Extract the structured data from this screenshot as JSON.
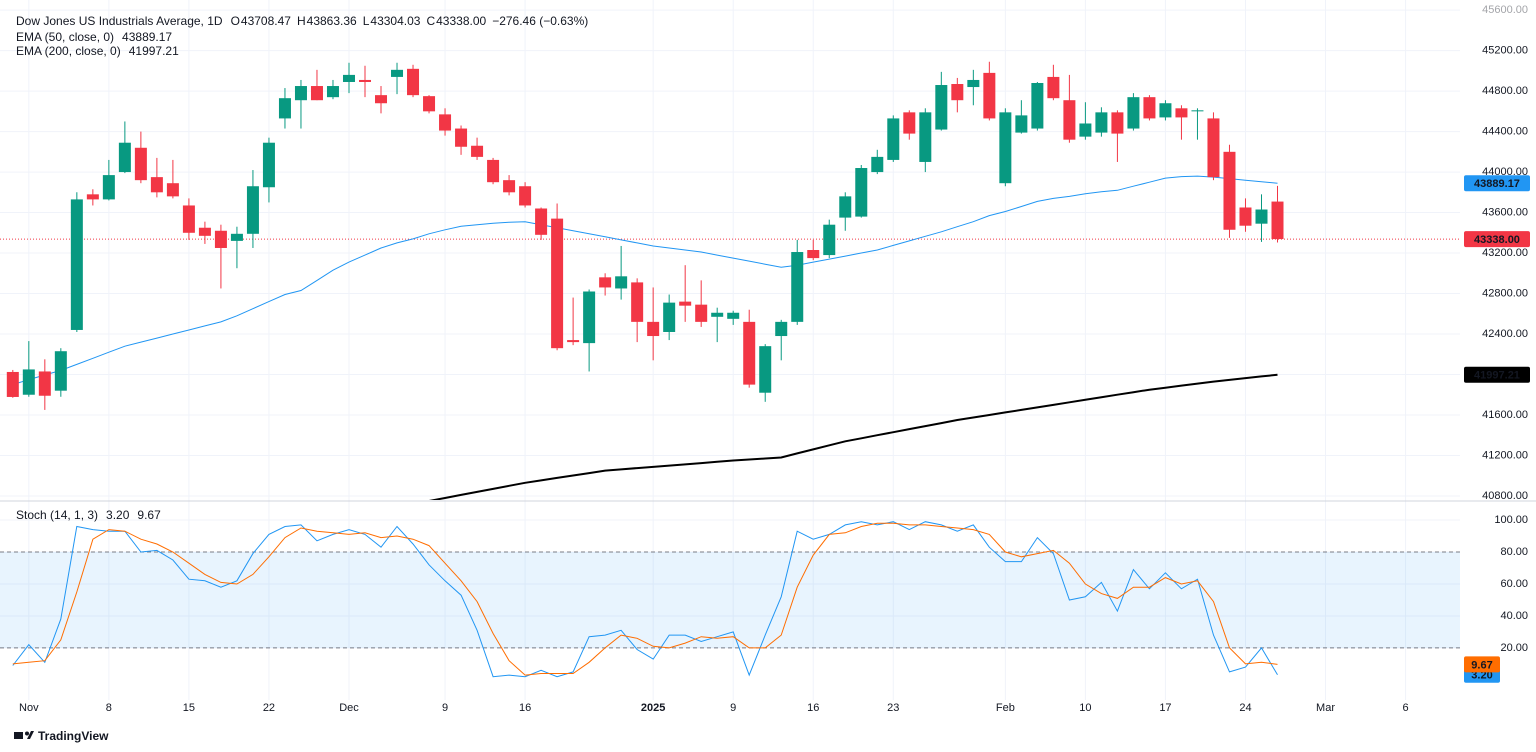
{
  "chart_data": [
    {
      "type": "candlestick",
      "title": "Dow Jones US Industrials Average, 1D",
      "ohlc": [
        {
          "key": "O",
          "text": "43708.47"
        },
        {
          "key": "H",
          "text": "43863.36"
        },
        {
          "key": "L",
          "text": "43304.03"
        },
        {
          "key": "C",
          "text": "43338.00"
        }
      ],
      "change": "−276.46 (−0.63%)",
      "up_color": "#089981",
      "down_color": "#f23645",
      "last_label": "43338.00",
      "xlim": [
        -0.8,
        90.4
      ],
      "ylim": [
        40760,
        45700
      ],
      "yticks": [
        {
          "value": 40800,
          "label": "40800.00"
        },
        {
          "value": 41200,
          "label": "41200.00"
        },
        {
          "value": 41600,
          "label": "41600.00"
        },
        {
          "value": 42000,
          "label": "42000.00"
        },
        {
          "value": 42400,
          "label": "42400.00"
        },
        {
          "value": 42800,
          "label": "42800.00"
        },
        {
          "value": 43200,
          "label": "43200.00"
        },
        {
          "value": 43600,
          "label": "43600.00"
        },
        {
          "value": 44000,
          "label": "44000.00"
        },
        {
          "value": 44400,
          "label": "44400.00"
        },
        {
          "value": 44800,
          "label": "44800.00"
        },
        {
          "value": 45200,
          "label": "45200.00"
        },
        {
          "value": 45600,
          "label": "45600.00"
        }
      ],
      "grid": true,
      "open": [
        42025,
        41800,
        42030,
        41840,
        42440,
        43780,
        43730,
        44000,
        44240,
        43950,
        43890,
        43670,
        43450,
        43420,
        43320,
        43390,
        43850,
        44530,
        44710,
        44850,
        44740,
        44890,
        44910,
        44760,
        44940,
        45020,
        44750,
        44570,
        44430,
        44260,
        44120,
        43920,
        43860,
        43640,
        43540,
        42340,
        42310,
        42960,
        42850,
        42910,
        42520,
        42420,
        42720,
        42690,
        42570,
        42550,
        42520,
        41820,
        42380,
        42520,
        43230,
        43180,
        43550,
        43560,
        44000,
        44120,
        44590,
        44100,
        44420,
        44870,
        44840,
        44980,
        43890,
        44390,
        44430,
        44940,
        44710,
        44350,
        44390,
        44590,
        44430,
        44740,
        44540,
        44630,
        44600,
        44530,
        44200,
        43650,
        43490,
        43708.47
      ],
      "high": [
        42045,
        42330,
        42150,
        42260,
        43800,
        43830,
        44120,
        44500,
        44400,
        44140,
        44120,
        43740,
        43510,
        43480,
        43460,
        44020,
        44340,
        44830,
        44910,
        45010,
        44910,
        45080,
        45050,
        44850,
        45080,
        45060,
        44760,
        44630,
        44460,
        44340,
        44140,
        43970,
        43900,
        43650,
        43690,
        42760,
        42840,
        43000,
        43270,
        42950,
        42860,
        42790,
        43080,
        42930,
        42660,
        42630,
        42640,
        42300,
        42540,
        43330,
        43330,
        43530,
        43800,
        44070,
        44220,
        44560,
        44610,
        44630,
        44990,
        44930,
        45010,
        45090,
        44630,
        44710,
        44890,
        45060,
        44960,
        44690,
        44640,
        44610,
        44780,
        44760,
        44710,
        44660,
        44630,
        44590,
        44270,
        43740,
        43780,
        43863.36
      ],
      "low": [
        41770,
        41780,
        41650,
        41780,
        42420,
        43670,
        43720,
        43990,
        43890,
        43750,
        43740,
        43330,
        43290,
        42850,
        43050,
        43250,
        43700,
        44430,
        44430,
        44710,
        44720,
        44780,
        44740,
        44580,
        44770,
        44740,
        44580,
        44360,
        44170,
        44120,
        43880,
        43770,
        43650,
        43330,
        42240,
        42290,
        42030,
        42780,
        42740,
        42320,
        42140,
        42340,
        42520,
        42470,
        42320,
        42490,
        41870,
        41730,
        42140,
        42490,
        43130,
        43150,
        43420,
        43550,
        43980,
        44100,
        44320,
        44000,
        44410,
        44590,
        44660,
        44510,
        43860,
        44380,
        44410,
        44710,
        44290,
        44320,
        44350,
        44100,
        44410,
        44510,
        44510,
        44320,
        44320,
        43920,
        43350,
        43410,
        43310,
        43304.03
      ],
      "close": [
        41778,
        42050,
        41790,
        42230,
        43730,
        43730,
        43970,
        44290,
        43920,
        43800,
        43760,
        43400,
        43370,
        43250,
        43390,
        43860,
        44290,
        44730,
        44850,
        44710,
        44850,
        44960,
        44890,
        44680,
        45010,
        44760,
        44600,
        44410,
        44250,
        44150,
        43900,
        43800,
        43670,
        43380,
        42260,
        42320,
        42820,
        42860,
        42970,
        42520,
        42380,
        42710,
        42680,
        42520,
        42610,
        42610,
        41900,
        42280,
        42520,
        43210,
        43150,
        43480,
        43760,
        44040,
        44150,
        44530,
        44380,
        44590,
        44860,
        44710,
        44910,
        44530,
        44590,
        44560,
        44880,
        44730,
        44320,
        44480,
        44590,
        44380,
        44740,
        44530,
        44680,
        44540,
        44610,
        43950,
        43430,
        43470,
        43630,
        43338
      ],
      "series": [
        {
          "name": "EMA (50, close, 0)",
          "color": "#2196f3",
          "width": 1,
          "last_label": "43889.17",
          "values": [
            41900,
            41950,
            41995,
            42040,
            42100,
            42160,
            42220,
            42280,
            42320,
            42360,
            42400,
            42440,
            42480,
            42520,
            42580,
            42650,
            42720,
            42790,
            42830,
            42930,
            43030,
            43110,
            43180,
            43250,
            43300,
            43340,
            43390,
            43430,
            43465,
            43480,
            43495,
            43505,
            43510,
            43480,
            43450,
            43420,
            43390,
            43360,
            43330,
            43300,
            43270,
            43250,
            43230,
            43210,
            43180,
            43150,
            43120,
            43090,
            43060,
            43080,
            43110,
            43140,
            43170,
            43200,
            43230,
            43275,
            43320,
            43365,
            43410,
            43460,
            43510,
            43570,
            43610,
            43660,
            43710,
            43740,
            43760,
            43785,
            43805,
            43820,
            43860,
            43900,
            43940,
            43955,
            43960,
            43950,
            43935,
            43920,
            43905,
            43889.17
          ]
        },
        {
          "name": "EMA (200, close, 0)",
          "color": "#000000",
          "width": 2,
          "last_label": "41997.21",
          "values": [
            null,
            null,
            null,
            null,
            null,
            null,
            null,
            null,
            null,
            null,
            null,
            null,
            null,
            null,
            null,
            null,
            null,
            null,
            null,
            null,
            null,
            null,
            null,
            null,
            null,
            null,
            40750,
            40780,
            40810,
            40840,
            40870,
            40900,
            40930,
            40954,
            40978,
            41002,
            41026,
            41050,
            41062,
            41075,
            41087,
            41100,
            41112,
            41125,
            41137,
            41150,
            41160,
            41170,
            41180,
            41220,
            41260,
            41300,
            41340,
            41370,
            41400,
            41430,
            41460,
            41490,
            41520,
            41550,
            41575,
            41600,
            41625,
            41650,
            41675,
            41700,
            41725,
            41750,
            41775,
            41800,
            41825,
            41850,
            41870,
            41890,
            41910,
            41930,
            41947,
            41964,
            41981,
            41997.21
          ]
        }
      ]
    },
    {
      "type": "line",
      "title": "Stoch (14, 1, 3)",
      "xlim": [
        -0.8,
        90.4
      ],
      "ylim": [
        -12.6,
        111.3
      ],
      "yticks": [
        {
          "value": 20,
          "label": "20.00"
        },
        {
          "value": 40,
          "label": "40.00"
        },
        {
          "value": 60,
          "label": "60.00"
        },
        {
          "value": 80,
          "label": "80.00"
        },
        {
          "value": 100,
          "label": "100.00"
        }
      ],
      "bands": [
        20,
        80
      ],
      "band_color": "#2196f3",
      "xticks": [
        {
          "value": 1,
          "label": "Nov"
        },
        {
          "value": 6,
          "label": "8"
        },
        {
          "value": 11,
          "label": "15"
        },
        {
          "value": 16,
          "label": "22"
        },
        {
          "value": 21,
          "label": "Dec"
        },
        {
          "value": 27,
          "label": "9"
        },
        {
          "value": 32,
          "label": "16"
        },
        {
          "value": 40,
          "label": "2025"
        },
        {
          "value": 45,
          "label": "9"
        },
        {
          "value": 50,
          "label": "16"
        },
        {
          "value": 55,
          "label": "23"
        },
        {
          "value": 62,
          "label": "Feb"
        },
        {
          "value": 67,
          "label": "10"
        },
        {
          "value": 72,
          "label": "17"
        },
        {
          "value": 77,
          "label": "24"
        },
        {
          "value": 82,
          "label": "Mar"
        },
        {
          "value": 87,
          "label": "6"
        }
      ],
      "series": [
        {
          "color": "#2196f3",
          "last_label": "3.20",
          "values": [
            9,
            22,
            11,
            38,
            96,
            94,
            93,
            93,
            80,
            81,
            75,
            63,
            62,
            58,
            62,
            79,
            91,
            96,
            97,
            87,
            91,
            94,
            91,
            83,
            96,
            85,
            72,
            62,
            53,
            31,
            2,
            3,
            2,
            6,
            2,
            5,
            27,
            28,
            31,
            19,
            13,
            28,
            28,
            24,
            27,
            30,
            3,
            28,
            52,
            93,
            88,
            91,
            97,
            99,
            97,
            99,
            94,
            99,
            97,
            93,
            97,
            83,
            74,
            74,
            89,
            79,
            50,
            52,
            61,
            43,
            69,
            57,
            67,
            57,
            63,
            28,
            5,
            8,
            20,
            3.2
          ]
        },
        {
          "color": "#ff6d00",
          "last_label": "9.67",
          "values": [
            10,
            11,
            12,
            25,
            55,
            88,
            94,
            93,
            88,
            85,
            80,
            73,
            66,
            61,
            60,
            66,
            77,
            89,
            95,
            93,
            92,
            91,
            92,
            89,
            90,
            88,
            84,
            73,
            62,
            49,
            29,
            12,
            3,
            4,
            4,
            4,
            11,
            20,
            28,
            26,
            21,
            20,
            23,
            27,
            26,
            27,
            20,
            20,
            28,
            58,
            78,
            91,
            92,
            96,
            98,
            98,
            97,
            97,
            96,
            95,
            94,
            91,
            80,
            77,
            79,
            81,
            73,
            60,
            54,
            51,
            58,
            58,
            64,
            60,
            62,
            49,
            20,
            10,
            11,
            9.67
          ]
        }
      ]
    }
  ],
  "footer": {
    "brand": "TradingView"
  }
}
